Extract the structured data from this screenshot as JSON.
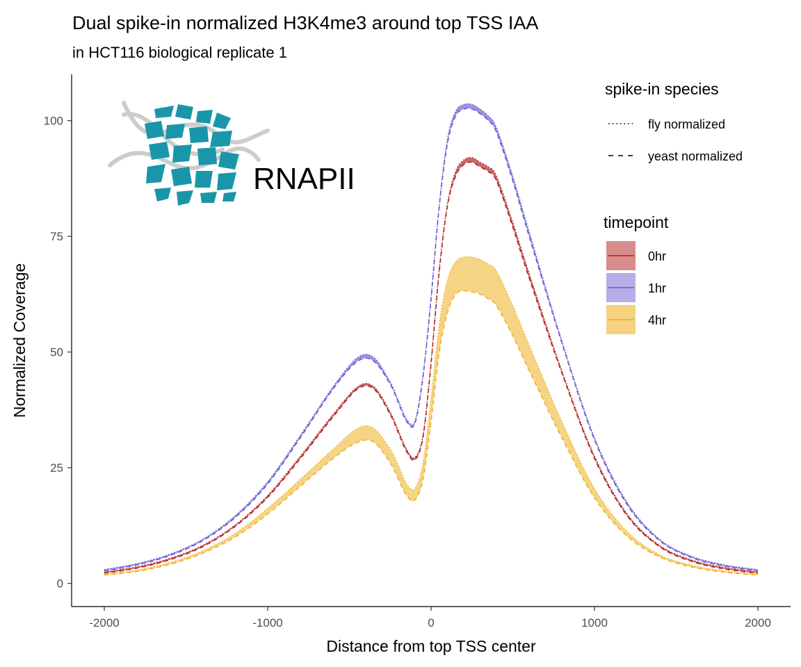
{
  "chart_data": {
    "type": "area",
    "title": "Dual spike-in normalized H3K4me3 around top TSS IAA",
    "subtitle": "in HCT116 biological replicate 1",
    "xlabel": "Distance from top TSS center",
    "ylabel": "Normalized Coverage",
    "xlim": [
      -2200,
      2200
    ],
    "ylim": [
      -5,
      110
    ],
    "x_ticks": [
      -2000,
      -1000,
      0,
      1000,
      2000
    ],
    "x_tick_labels": [
      "-2000",
      "-1000",
      "0",
      "1000",
      "2000"
    ],
    "y_ticks": [
      0,
      25,
      50,
      75,
      100
    ],
    "y_tick_labels": [
      "0",
      "25",
      "50",
      "75",
      "100"
    ],
    "grid": false,
    "legend_position": "right",
    "legends": {
      "linetype": {
        "title": "spike-in species",
        "entries": [
          {
            "label": "fly normalized",
            "linetype": "dotted"
          },
          {
            "label": "yeast normalized",
            "linetype": "dashed"
          }
        ]
      },
      "fill": {
        "title": "timepoint",
        "entries": [
          {
            "label": "0hr",
            "line_color": "#b22222",
            "fill_color": "#d98c8c"
          },
          {
            "label": "1hr",
            "line_color": "#6a5acd",
            "fill_color": "#b5aee8"
          },
          {
            "label": "4hr",
            "line_color": "#f0b020",
            "fill_color": "#f5d280"
          }
        ]
      }
    },
    "x": [
      -2000,
      -1800,
      -1600,
      -1400,
      -1200,
      -1000,
      -800,
      -600,
      -450,
      -350,
      -250,
      -200,
      -150,
      -100,
      -50,
      0,
      50,
      100,
      150,
      200,
      250,
      300,
      350,
      400,
      500,
      600,
      800,
      1000,
      1200,
      1400,
      1600,
      1800,
      2000
    ],
    "series": [
      {
        "name": "0hr",
        "fly": [
          2.5,
          3.6,
          5.4,
          8.2,
          12.6,
          19.0,
          27.5,
          36.5,
          42.5,
          42.5,
          37.0,
          33.0,
          29.0,
          27.2,
          32.0,
          48.0,
          68.0,
          82.0,
          89.0,
          91.5,
          92.0,
          91.0,
          90.0,
          88.0,
          78.0,
          67.0,
          46.0,
          27.5,
          15.0,
          8.2,
          5.0,
          3.4,
          2.5
        ],
        "yeast": [
          2.2,
          3.3,
          5.1,
          7.9,
          12.3,
          18.6,
          27.0,
          36.0,
          42.0,
          42.0,
          36.5,
          32.5,
          28.5,
          26.7,
          31.5,
          47.5,
          67.5,
          81.5,
          88.0,
          90.5,
          91.0,
          90.0,
          89.0,
          87.0,
          77.0,
          66.0,
          45.5,
          27.0,
          14.6,
          7.9,
          4.7,
          3.1,
          2.2
        ]
      },
      {
        "name": "1hr",
        "fly": [
          3.0,
          4.3,
          6.3,
          9.5,
          14.6,
          22.0,
          32.0,
          42.5,
          48.8,
          48.8,
          43.5,
          39.5,
          35.5,
          35.0,
          45.0,
          62.0,
          82.0,
          96.0,
          102.0,
          103.5,
          103.5,
          102.5,
          101.0,
          98.5,
          88.0,
          76.0,
          52.5,
          31.5,
          17.5,
          9.5,
          5.8,
          4.0,
          3.0
        ],
        "yeast": [
          2.7,
          4.0,
          6.0,
          9.2,
          14.2,
          21.5,
          31.5,
          42.0,
          48.0,
          48.0,
          43.0,
          39.0,
          35.0,
          34.5,
          44.5,
          61.5,
          81.5,
          95.0,
          101.0,
          102.5,
          102.5,
          101.5,
          100.0,
          97.5,
          87.0,
          75.0,
          52.0,
          31.0,
          17.0,
          9.2,
          5.5,
          3.7,
          2.7
        ]
      },
      {
        "name": "4hr",
        "fly": [
          2.0,
          2.9,
          4.5,
          7.0,
          10.8,
          16.2,
          22.5,
          29.0,
          33.5,
          33.5,
          29.0,
          25.5,
          21.5,
          20.5,
          26.0,
          40.0,
          56.0,
          65.5,
          69.5,
          70.5,
          70.5,
          70.0,
          69.0,
          67.5,
          60.0,
          51.5,
          35.0,
          20.5,
          11.2,
          6.2,
          3.9,
          2.7,
          2.0
        ],
        "yeast": [
          1.8,
          2.6,
          4.1,
          6.5,
          10.0,
          15.0,
          21.0,
          27.0,
          30.5,
          30.5,
          26.0,
          22.5,
          19.0,
          18.0,
          22.5,
          35.0,
          50.0,
          58.5,
          62.5,
          63.2,
          63.0,
          62.5,
          61.5,
          60.0,
          53.5,
          46.0,
          31.5,
          18.5,
          10.2,
          5.7,
          3.5,
          2.4,
          1.8
        ]
      }
    ],
    "series_colors": {
      "0hr": {
        "line": "#b22222",
        "fill": "#c0504d"
      },
      "1hr": {
        "line": "#6a5acd",
        "fill": "#8a7fe0"
      },
      "4hr": {
        "line": "#f0b020",
        "fill": "#f3cc70"
      }
    },
    "inset_logo": {
      "text": "RNAPII",
      "colors": {
        "blocks": "#1a96aa",
        "strands": "#cccccc"
      }
    }
  }
}
